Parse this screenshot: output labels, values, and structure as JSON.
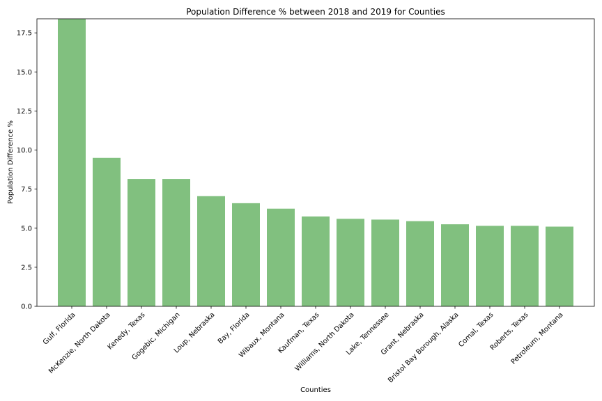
{
  "chart_data": {
    "type": "bar",
    "title": "Population Difference % between 2018 and 2019 for Counties",
    "xlabel": "Counties",
    "ylabel": "Population Difference %",
    "ylim": [
      0,
      18.4
    ],
    "yticks": [
      "0.0",
      "2.5",
      "5.0",
      "7.5",
      "10.0",
      "12.5",
      "15.0",
      "17.5"
    ],
    "categories": [
      "Gulf, Florida",
      "McKenzie, North Dakota",
      "Kenedy, Texas",
      "Gogebic, Michigan",
      "Loup, Nebraska",
      "Bay, Florida",
      "Wibaux, Montana",
      "Kaufman, Texas",
      "Williams, North Dakota",
      "Lake, Tennessee",
      "Grant, Nebraska",
      "Bristol Bay Borough, Alaska",
      "Comal, Texas",
      "Roberts, Texas",
      "Petroleum, Montana"
    ],
    "values": [
      18.4,
      9.5,
      8.15,
      8.15,
      7.05,
      6.6,
      6.25,
      5.75,
      5.6,
      5.55,
      5.45,
      5.25,
      5.15,
      5.15,
      5.1
    ],
    "bar_color": "#81c07f",
    "grid": false,
    "legend": "none"
  }
}
